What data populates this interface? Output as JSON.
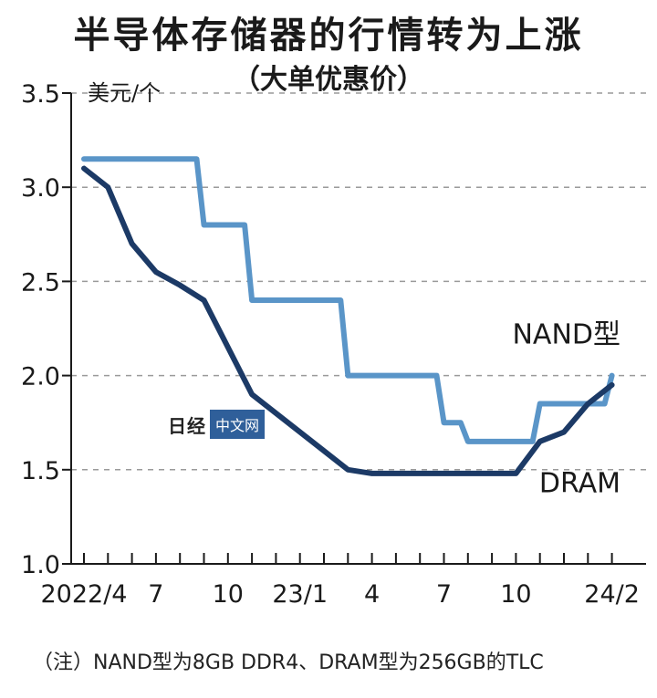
{
  "header": {
    "title": "半导体存储器的行情转为上涨",
    "subtitle": "（大单优惠价）"
  },
  "watermark": {
    "brand": "日经",
    "badge": "中文网"
  },
  "note": "（注）NAND型为8GB DDR4、DRAM型为256GB的TLC",
  "chart_data": {
    "type": "line",
    "title": "半导体存储器的行情转为上涨",
    "subtitle": "（大单优惠价）",
    "unit": "美元/个",
    "xlabel": "",
    "ylabel": "美元/个",
    "ylim": [
      1.0,
      3.5
    ],
    "yticks": [
      "1.0",
      "1.5",
      "2.0",
      "2.5",
      "3.0",
      "3.5"
    ],
    "x": [
      "2022/4",
      "2022/5",
      "2022/6",
      "2022/7",
      "2022/8",
      "2022/9",
      "2022/10",
      "2022/11",
      "2022/12",
      "2023/1",
      "2023/2",
      "2023/3",
      "2023/4",
      "2023/5",
      "2023/6",
      "2023/7",
      "2023/8",
      "2023/9",
      "2023/10",
      "2023/11",
      "2023/12",
      "2024/1",
      "2024/2"
    ],
    "xtick_labels": [
      {
        "at": "2022/4",
        "label": "2022/4"
      },
      {
        "at": "2022/7",
        "label": "7"
      },
      {
        "at": "2022/10",
        "label": "10"
      },
      {
        "at": "2023/1",
        "label": "23/1"
      },
      {
        "at": "2023/4",
        "label": "4"
      },
      {
        "at": "2023/7",
        "label": "7"
      },
      {
        "at": "2023/10",
        "label": "10"
      },
      {
        "at": "2024/2",
        "label": "24/2"
      }
    ],
    "grid": "horizontal dashed",
    "series": [
      {
        "name": "NAND型",
        "color": "#5a95c8",
        "step": true,
        "values": [
          3.15,
          3.15,
          3.15,
          3.15,
          3.15,
          2.8,
          2.8,
          2.4,
          2.4,
          2.4,
          2.4,
          2.0,
          2.0,
          2.0,
          2.0,
          1.75,
          1.65,
          1.65,
          1.65,
          1.85,
          1.85,
          1.85,
          2.0
        ]
      },
      {
        "name": "DRAM",
        "color": "#1c3a66",
        "step": false,
        "values": [
          3.1,
          3.0,
          2.7,
          2.55,
          2.48,
          2.4,
          2.15,
          1.9,
          1.8,
          1.7,
          1.6,
          1.5,
          1.48,
          1.48,
          1.48,
          1.48,
          1.48,
          1.48,
          1.48,
          1.65,
          1.7,
          1.85,
          1.95
        ]
      }
    ]
  }
}
